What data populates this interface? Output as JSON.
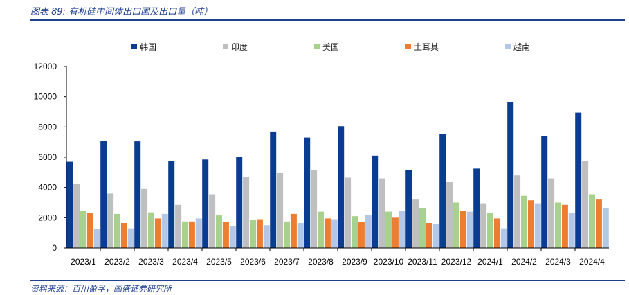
{
  "figure": {
    "title": "图表 89: 有机硅中间体出口国及出口量（吨）",
    "source": "资料来源：百川盈孚，国盛证券研究所"
  },
  "chart_data": {
    "type": "bar",
    "ylim": [
      0,
      12000
    ],
    "yticks": [
      0,
      2000,
      4000,
      6000,
      8000,
      10000,
      12000
    ],
    "legend_position": "top",
    "grid": false,
    "categories": [
      "2023/1",
      "2023/2",
      "2023/3",
      "2023/4",
      "2023/5",
      "2023/6",
      "2023/7",
      "2023/8",
      "2023/9",
      "2023/10",
      "2023/11",
      "2023/12",
      "2024/1",
      "2024/2",
      "2024/3",
      "2024/4"
    ],
    "series": [
      {
        "name": "韩国",
        "color": "#0a3d91",
        "values": [
          5700,
          7100,
          7050,
          5750,
          5850,
          6000,
          7700,
          7300,
          8050,
          6100,
          5150,
          7550,
          5250,
          9650,
          7400,
          8950
        ]
      },
      {
        "name": "印度",
        "color": "#bfbfbf",
        "values": [
          4250,
          3600,
          3900,
          2850,
          3550,
          4700,
          4950,
          5150,
          4650,
          4600,
          3200,
          4350,
          2950,
          4800,
          4600,
          5750
        ]
      },
      {
        "name": "美国",
        "color": "#a9d18e",
        "values": [
          2450,
          2250,
          2350,
          1750,
          2150,
          1850,
          1750,
          2400,
          2100,
          2400,
          2650,
          3000,
          2300,
          3450,
          3000,
          3550
        ]
      },
      {
        "name": "土耳其",
        "color": "#ed7d31",
        "values": [
          2300,
          1650,
          1950,
          1750,
          1700,
          1900,
          2250,
          1950,
          1700,
          2000,
          1650,
          2450,
          1950,
          3150,
          2850,
          3200
        ]
      },
      {
        "name": "越南",
        "color": "#b4c7e7",
        "values": [
          1250,
          1300,
          2250,
          1950,
          1450,
          1500,
          1650,
          1900,
          2200,
          2450,
          1600,
          2400,
          1300,
          2950,
          2300,
          2650
        ]
      }
    ]
  }
}
